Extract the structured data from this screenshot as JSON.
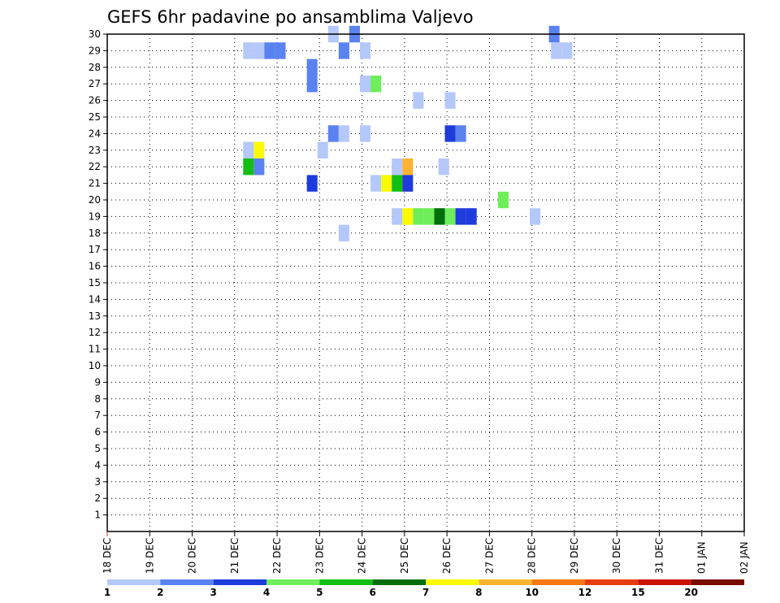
{
  "chart_data": {
    "type": "heatmap",
    "title": "GEFS 6hr padavine po ansamblima Valjevo",
    "xlabel": "",
    "ylabel": "",
    "x_tick_labels": [
      "18 DEC",
      "19 DEC",
      "20 DEC",
      "21 DEC",
      "22 DEC",
      "23 DEC",
      "24 DEC",
      "25 DEC",
      "26 DEC",
      "27 DEC",
      "28 DEC",
      "29 DEC",
      "30 DEC",
      "31 DEC",
      "01 JAN",
      "02 JAN"
    ],
    "y_tick_labels": [
      "1",
      "2",
      "3",
      "4",
      "5",
      "6",
      "7",
      "8",
      "9",
      "10",
      "11",
      "12",
      "13",
      "14",
      "15",
      "16",
      "17",
      "18",
      "19",
      "20",
      "21",
      "22",
      "23",
      "24",
      "25",
      "26",
      "27",
      "28",
      "29",
      "30"
    ],
    "xlim_days": [
      0,
      15
    ],
    "ylim_members": [
      0,
      30
    ],
    "grid": "dotted",
    "colorbar": {
      "labels": [
        "1",
        "2",
        "3",
        "4",
        "5",
        "6",
        "7",
        "8",
        "10",
        "12",
        "15",
        "20"
      ],
      "colors": [
        "#b4c8fa",
        "#5a82f0",
        "#1e3cdc",
        "#6eee5a",
        "#14be14",
        "#006e0a",
        "#fafa00",
        "#fab432",
        "#f57814",
        "#e63c0f",
        "#c81405",
        "#780a00"
      ]
    },
    "cells": [
      {
        "day": 23.2,
        "member": 30,
        "class": 1
      },
      {
        "day": 23.7,
        "member": 30,
        "class": 2
      },
      {
        "day": 28.4,
        "member": 30,
        "class": 2
      },
      {
        "day": 21.2,
        "member": 29,
        "class": 1
      },
      {
        "day": 21.45,
        "member": 29,
        "class": 1
      },
      {
        "day": 21.7,
        "member": 29,
        "class": 2
      },
      {
        "day": 21.95,
        "member": 29,
        "class": 2
      },
      {
        "day": 23.45,
        "member": 29,
        "class": 2
      },
      {
        "day": 23.95,
        "member": 29,
        "class": 1
      },
      {
        "day": 28.45,
        "member": 29,
        "class": 1
      },
      {
        "day": 28.7,
        "member": 29,
        "class": 1
      },
      {
        "day": 22.7,
        "member": 28,
        "class": 2
      },
      {
        "day": 22.7,
        "member": 27,
        "class": 2
      },
      {
        "day": 23.95,
        "member": 27,
        "class": 1
      },
      {
        "day": 24.2,
        "member": 27,
        "class": 4
      },
      {
        "day": 25.2,
        "member": 26,
        "class": 1
      },
      {
        "day": 25.95,
        "member": 26,
        "class": 1
      },
      {
        "day": 23.2,
        "member": 24,
        "class": 2
      },
      {
        "day": 23.45,
        "member": 24,
        "class": 1
      },
      {
        "day": 23.95,
        "member": 24,
        "class": 1
      },
      {
        "day": 25.95,
        "member": 24,
        "class": 3
      },
      {
        "day": 26.2,
        "member": 24,
        "class": 2
      },
      {
        "day": 22.95,
        "member": 23,
        "class": 1
      },
      {
        "day": 21.2,
        "member": 23,
        "class": 1
      },
      {
        "day": 21.45,
        "member": 23,
        "class": 7
      },
      {
        "day": 21.2,
        "member": 22,
        "class": 5
      },
      {
        "day": 21.45,
        "member": 22,
        "class": 2
      },
      {
        "day": 24.7,
        "member": 22,
        "class": 1
      },
      {
        "day": 24.95,
        "member": 22,
        "class": 8
      },
      {
        "day": 25.8,
        "member": 22,
        "class": 1
      },
      {
        "day": 22.7,
        "member": 21,
        "class": 3
      },
      {
        "day": 24.2,
        "member": 21,
        "class": 1
      },
      {
        "day": 24.45,
        "member": 21,
        "class": 7
      },
      {
        "day": 24.7,
        "member": 21,
        "class": 5
      },
      {
        "day": 24.95,
        "member": 21,
        "class": 8
      },
      {
        "day": 24.95,
        "member": 21,
        "class": 3
      },
      {
        "day": 27.2,
        "member": 20,
        "class": 4
      },
      {
        "day": 24.7,
        "member": 19,
        "class": 1
      },
      {
        "day": 24.95,
        "member": 19,
        "class": 7
      },
      {
        "day": 25.2,
        "member": 19,
        "class": 4
      },
      {
        "day": 25.45,
        "member": 19,
        "class": 4
      },
      {
        "day": 25.7,
        "member": 19,
        "class": 6
      },
      {
        "day": 25.95,
        "member": 19,
        "class": 4
      },
      {
        "day": 26.2,
        "member": 19,
        "class": 3
      },
      {
        "day": 26.45,
        "member": 19,
        "class": 3
      },
      {
        "day": 27.95,
        "member": 19,
        "class": 1
      },
      {
        "day": 23.45,
        "member": 18,
        "class": 1
      }
    ]
  }
}
